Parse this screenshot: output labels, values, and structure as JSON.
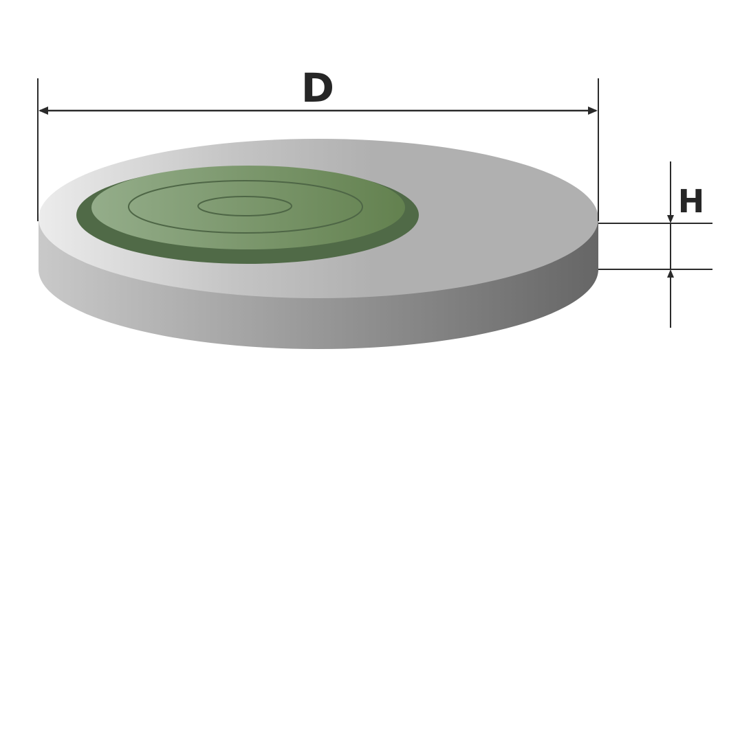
{
  "diagram": {
    "dimensions": {
      "diameter_label": "D",
      "height_label": "H"
    },
    "colors": {
      "background": "#ffffff",
      "slab_top_light": "#ececec",
      "slab_top_mid": "#c4c4c4",
      "slab_top_dark": "#b0b0b0",
      "slab_side_light": "#c9c9c9",
      "slab_side_dark": "#666666",
      "hatch_rim": "#506a47",
      "hatch_top_light": "#94ad8a",
      "hatch_top_dark": "#63814f",
      "hatch_rings": "#4e6646",
      "dimension_lines": "#2a2a2a"
    }
  }
}
